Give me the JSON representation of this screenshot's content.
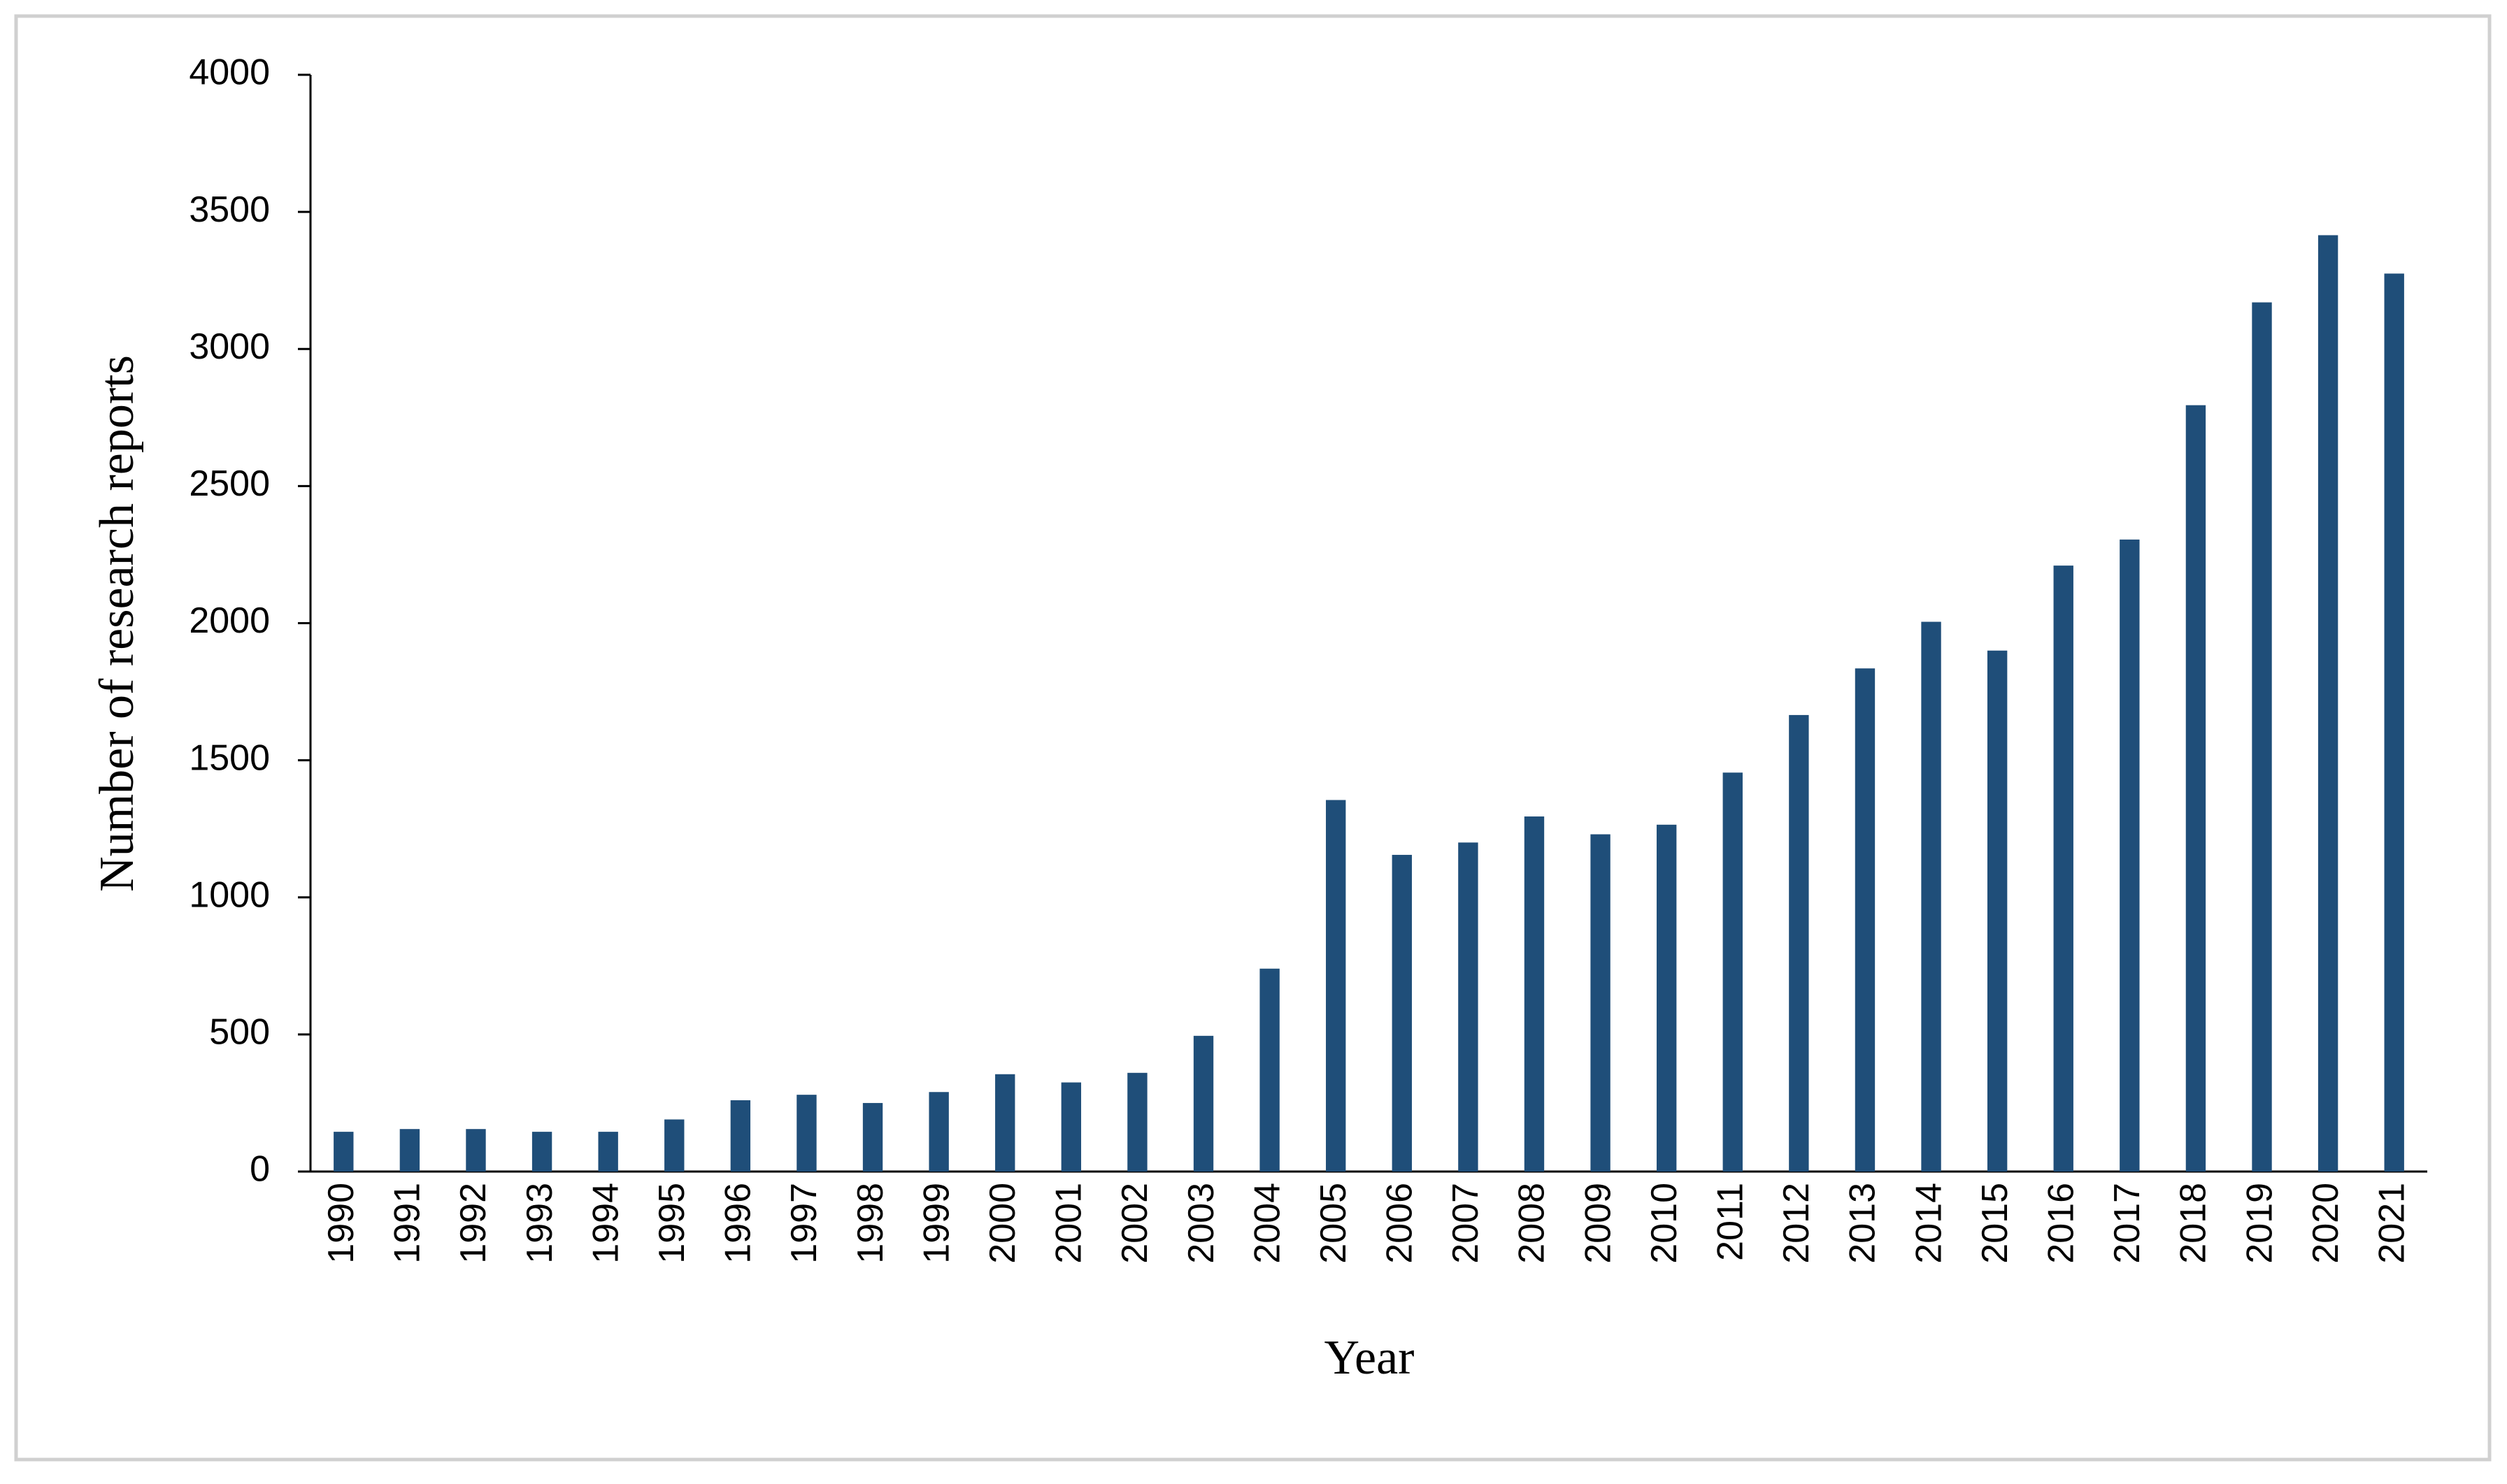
{
  "chart_data": {
    "type": "bar",
    "x_label": "Year",
    "y_label": "Number of research reports",
    "categories": [
      "1990",
      "1991",
      "1992",
      "1993",
      "1994",
      "1995",
      "1996",
      "1997",
      "1998",
      "1999",
      "2000",
      "2001",
      "2002",
      "2003",
      "2004",
      "2005",
      "2006",
      "2007",
      "2008",
      "2009",
      "2010",
      "2011",
      "2012",
      "2013",
      "2014",
      "2015",
      "2016",
      "2017",
      "2018",
      "2019",
      "2020",
      "2021"
    ],
    "values": [
      145,
      155,
      155,
      145,
      145,
      190,
      260,
      280,
      250,
      290,
      355,
      325,
      360,
      495,
      740,
      1355,
      1155,
      1200,
      1295,
      1230,
      1265,
      1455,
      1665,
      1835,
      2005,
      1900,
      2210,
      2305,
      2795,
      3170,
      3415,
      3275
    ],
    "color": "#1f4e79",
    "ylim": [
      0,
      4000
    ],
    "yticks": [
      0,
      500,
      1000,
      1500,
      2000,
      2500,
      3000,
      3500,
      4000
    ],
    "grid": false
  }
}
